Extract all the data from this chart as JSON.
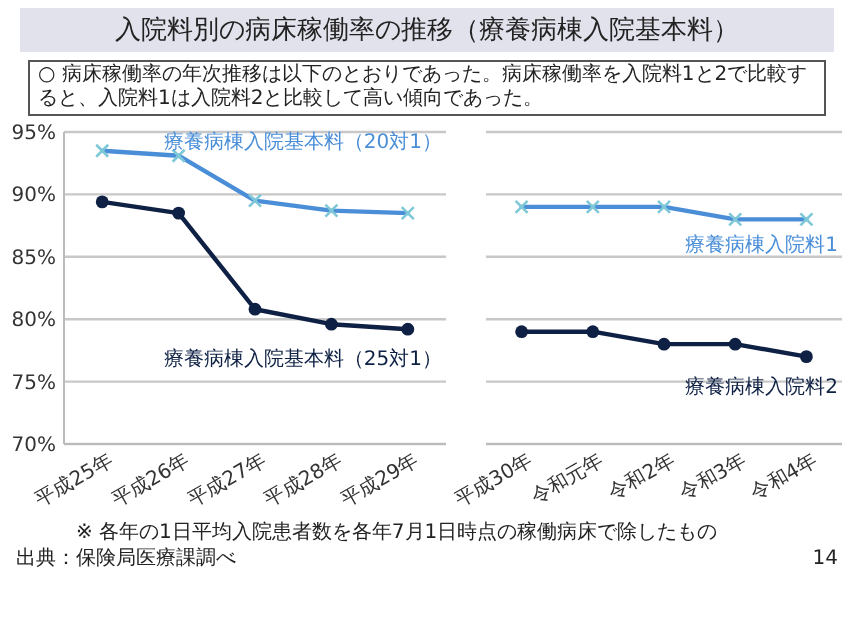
{
  "chart_data": [
    {
      "type": "line",
      "title": "入院料別の病床稼働率の推移（療養病棟入院基本料）",
      "subtitle": "○ 病床稼働率の年次推移は以下のとおりであった。病床稼働率を入院料1と2で比較すると、入院料1は入院料2と比較して高い傾向であった。",
      "categories": [
        "平成25年",
        "平成26年",
        "平成27年",
        "平成28年",
        "平成29年"
      ],
      "series": [
        {
          "name": "療養病棟入院基本料（20対1）",
          "color": "#4a8ed8",
          "marker": "cross",
          "values": [
            93.5,
            93.1,
            89.5,
            88.7,
            88.5
          ]
        },
        {
          "name": "療養病棟入院基本料（25対1）",
          "color": "#0e2044",
          "marker": "circle",
          "values": [
            89.4,
            88.5,
            80.8,
            79.6,
            79.2
          ]
        }
      ],
      "ylim": [
        70,
        95
      ],
      "yticks": [
        {
          "value": 70,
          "label": "70%"
        },
        {
          "value": 75,
          "label": "75%"
        },
        {
          "value": 80,
          "label": "80%"
        },
        {
          "value": 85,
          "label": "85%"
        },
        {
          "value": 90,
          "label": "90%"
        },
        {
          "value": 95,
          "label": "95%"
        }
      ],
      "grid": "y",
      "annotations": [
        "※ 各年の1日平均入院患者数を各年7月1日時点の稼働病床で除したもの",
        "出典：保険局医療課調べ",
        "14"
      ]
    },
    {
      "type": "line",
      "categories": [
        "平成30年",
        "令和元年",
        "令和2年",
        "令和3年",
        "令和4年"
      ],
      "series": [
        {
          "name": "療養病棟入院料1",
          "color": "#4a8ed8",
          "marker": "cross",
          "values": [
            89,
            89,
            89,
            88,
            88
          ]
        },
        {
          "name": "療養病棟入院料2",
          "color": "#0e2044",
          "marker": "circle",
          "values": [
            79,
            79,
            78,
            78,
            77
          ]
        }
      ],
      "ylim": [
        70,
        95
      ],
      "yticks": [
        70,
        75,
        80,
        85,
        90,
        95
      ],
      "grid": "y",
      "tick_labels": "x"
    }
  ]
}
